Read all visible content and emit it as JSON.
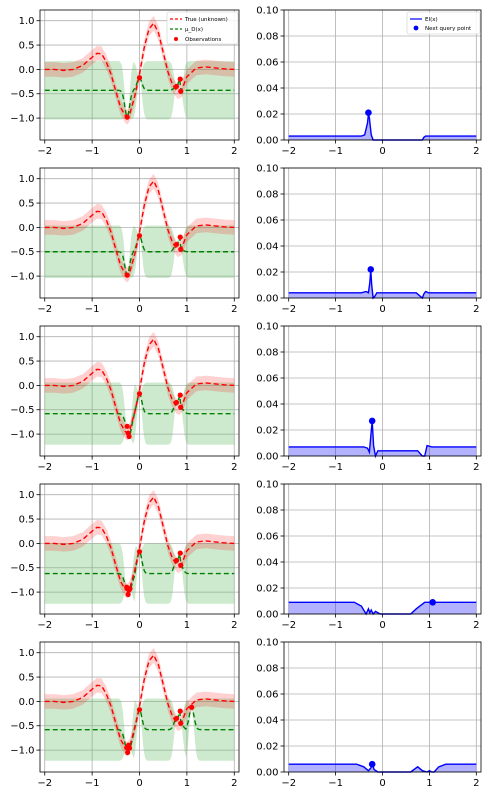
{
  "chart_data": {
    "type": "line",
    "layout": "5 rows x 2 columns",
    "left_panels": {
      "xlim": [
        -2.1,
        2.1
      ],
      "ylim": [
        -1.45,
        1.22
      ],
      "xticks": [
        -2,
        -1,
        0,
        1,
        2
      ],
      "yticks": [
        1.0,
        0.5,
        0.0,
        -0.5,
        -1.0
      ],
      "xtick_labels": [
        "−2",
        "−1",
        "0",
        "1",
        "2"
      ],
      "ytick_labels": [
        "1.0",
        "0.5",
        "0.0",
        "−0.5",
        "−1.0"
      ],
      "grid": true,
      "true_function": {
        "name": "True (unknown)",
        "color": "#ff0000",
        "style": "dashed",
        "x": [
          -2.0,
          -1.8,
          -1.6,
          -1.4,
          -1.2,
          -1.0,
          -0.9,
          -0.8,
          -0.7,
          -0.6,
          -0.5,
          -0.4,
          -0.3,
          -0.25,
          -0.2,
          -0.1,
          0.0,
          0.1,
          0.2,
          0.3,
          0.4,
          0.5,
          0.6,
          0.7,
          0.8,
          0.85,
          0.9,
          1.0,
          1.2,
          1.4,
          1.6,
          1.8,
          2.0
        ],
        "y": [
          0.0,
          0.0,
          -0.02,
          0.0,
          0.08,
          0.25,
          0.33,
          0.32,
          0.15,
          -0.1,
          -0.45,
          -0.78,
          -0.95,
          -0.98,
          -0.9,
          -0.55,
          -0.1,
          0.45,
          0.83,
          0.95,
          0.75,
          0.35,
          -0.05,
          -0.32,
          -0.45,
          -0.45,
          -0.4,
          -0.15,
          0.03,
          0.05,
          0.03,
          0.01,
          0.0
        ]
      },
      "true_band_halfwidth": 0.15,
      "observations_name": "Observations",
      "observations_color": "#ff0000",
      "mean_name": "μ_D(x)",
      "mean_color": "#008000",
      "band_color": "#5cb85c",
      "panels": [
        {
          "mean_level": -0.43,
          "band_halfwidth": 0.58,
          "obs_x": [
            -0.26,
            0.0,
            0.78,
            0.87,
            0.86
          ],
          "obs_y": [
            -0.98,
            -0.17,
            -0.35,
            -0.45,
            -0.2
          ]
        },
        {
          "mean_level": -0.5,
          "band_halfwidth": 0.52,
          "obs_x": [
            -0.26,
            0.0,
            0.78,
            0.87,
            0.86
          ],
          "obs_y": [
            -0.98,
            -0.17,
            -0.35,
            -0.45,
            -0.2
          ]
        },
        {
          "mean_level": -0.58,
          "band_halfwidth": 0.62,
          "obs_x": [
            -0.26,
            -0.24,
            -0.22,
            0.0,
            0.78,
            0.87,
            0.86
          ],
          "obs_y": [
            -0.84,
            -0.98,
            -1.05,
            -0.17,
            -0.35,
            -0.45,
            -0.2
          ]
        },
        {
          "mean_level": -0.62,
          "band_halfwidth": 0.6,
          "obs_x": [
            -0.27,
            -0.24,
            -0.22,
            -0.2,
            0.0,
            0.78,
            0.87,
            0.86
          ],
          "obs_y": [
            -0.9,
            -1.05,
            -0.96,
            -0.93,
            -0.17,
            -0.35,
            -0.45,
            -0.2
          ]
        },
        {
          "mean_level": -0.58,
          "band_halfwidth": 0.62,
          "obs_x": [
            -0.27,
            -0.25,
            -0.23,
            -0.21,
            0.0,
            0.78,
            0.87,
            0.86,
            1.1
          ],
          "obs_y": [
            -0.95,
            -1.05,
            -0.9,
            -0.96,
            -0.17,
            -0.35,
            -0.45,
            -0.2,
            -0.12
          ]
        }
      ]
    },
    "right_panels": {
      "xlim": [
        -2.1,
        2.1
      ],
      "ylim": [
        0.0,
        0.1
      ],
      "xticks": [
        -2,
        -1,
        0,
        1,
        2
      ],
      "yticks": [
        0.1,
        0.08,
        0.06,
        0.04,
        0.02,
        0.0
      ],
      "xtick_labels": [
        "−2",
        "−1",
        "0",
        "1",
        "2"
      ],
      "ytick_labels": [
        "0.10",
        "0.08",
        "0.06",
        "0.04",
        "0.02",
        "0.00"
      ],
      "grid": true,
      "ei_name": "EI(x)",
      "ei_color": "#0000ff",
      "fill_color": "#0000ff",
      "next_query_name": "Next query point",
      "panels": [
        {
          "x": [
            -2.0,
            -0.45,
            -0.38,
            -0.32,
            -0.3,
            -0.28,
            -0.24,
            -0.2,
            -0.15,
            0.72,
            0.85,
            0.88,
            0.92,
            0.98,
            2.0
          ],
          "y": [
            0.003,
            0.003,
            0.004,
            0.013,
            0.02,
            0.017,
            0.004,
            0.0,
            0.0,
            0.0,
            0.0,
            0.002,
            0.003,
            0.003,
            0.003
          ],
          "next_x": -0.3,
          "next_y": 0.021
        },
        {
          "x": [
            -2.0,
            -0.45,
            -0.35,
            -0.3,
            -0.27,
            -0.25,
            -0.23,
            -0.2,
            -0.17,
            -0.12,
            0.72,
            0.85,
            0.88,
            0.92,
            0.98,
            2.0
          ],
          "y": [
            0.004,
            0.004,
            0.005,
            0.004,
            0.012,
            0.022,
            0.01,
            0.0,
            0.001,
            0.004,
            0.004,
            0.0,
            0.003,
            0.005,
            0.004,
            0.004
          ],
          "next_x": -0.25,
          "next_y": 0.022
        },
        {
          "x": [
            -2.0,
            -0.4,
            -0.32,
            -0.28,
            -0.25,
            -0.22,
            -0.19,
            -0.15,
            -0.1,
            0.75,
            0.85,
            0.9,
            0.95,
            1.05,
            2.0
          ],
          "y": [
            0.007,
            0.007,
            0.006,
            0.003,
            0.015,
            0.027,
            0.008,
            0.0,
            0.004,
            0.004,
            0.0,
            0.0,
            0.008,
            0.007,
            0.007
          ],
          "next_x": -0.22,
          "next_y": 0.027
        },
        {
          "x": [
            -2.0,
            -0.6,
            -0.45,
            -0.35,
            -0.3,
            -0.27,
            -0.24,
            -0.2,
            -0.15,
            -0.05,
            0.1,
            0.3,
            0.6,
            0.72,
            0.9,
            1.0,
            1.07,
            1.15,
            1.3,
            2.0
          ],
          "y": [
            0.009,
            0.009,
            0.006,
            0.0,
            0.004,
            0.001,
            0.003,
            0.0,
            0.002,
            0.0,
            0.0,
            0.0,
            0.0,
            0.004,
            0.009,
            0.009,
            0.009,
            0.009,
            0.009,
            0.009
          ],
          "next_x": 1.07,
          "next_y": 0.009
        },
        {
          "x": [
            -2.0,
            -0.55,
            -0.4,
            -0.3,
            -0.25,
            -0.21,
            -0.18,
            -0.1,
            0.3,
            0.6,
            0.75,
            0.85,
            0.95,
            1.0,
            1.05,
            1.1,
            1.2,
            1.35,
            2.0
          ],
          "y": [
            0.006,
            0.006,
            0.004,
            0.001,
            0.003,
            0.006,
            0.002,
            0.0,
            0.0,
            0.0,
            0.004,
            0.001,
            0.0,
            0.001,
            0.0,
            0.0,
            0.004,
            0.006,
            0.006
          ],
          "next_x": -0.22,
          "next_y": 0.006
        }
      ]
    }
  }
}
